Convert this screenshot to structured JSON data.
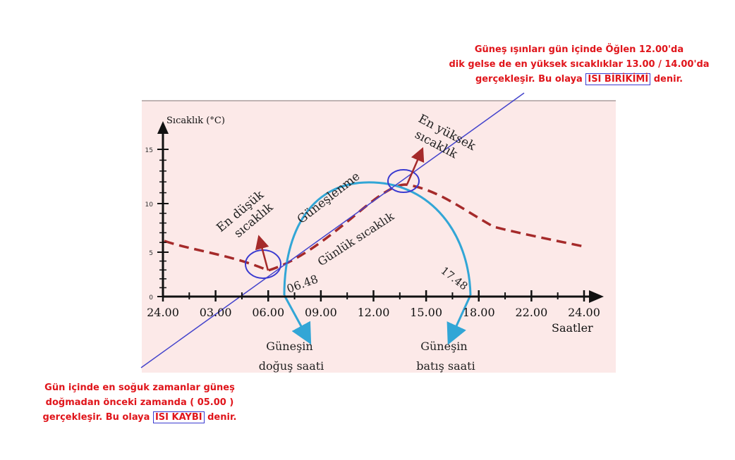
{
  "colors": {
    "background": "#ffffff",
    "panel": "#fce9e8",
    "panel_border": "#bfb3b3",
    "axis": "#111111",
    "temperature_curve": "#a52a2a",
    "sun_arc": "#32a6d6",
    "guide_line": "#4444cc",
    "circle": "#3a3ad0",
    "arrow": "#a52a2a",
    "note_text": "#e0151b"
  },
  "chart": {
    "y_axis_label": "Sıcaklık (°C)",
    "y_ticks": [
      "15",
      "10",
      "5",
      "0"
    ],
    "x_ticks": [
      "24.00",
      "03.00",
      "06.00",
      "09.00",
      "12.00",
      "15.00",
      "18.00",
      "22.00",
      "24.00"
    ],
    "x_axis_label": "Saatler",
    "min_label": [
      "En düşük",
      "sıcaklık"
    ],
    "max_label": [
      "En yüksek",
      "sıcaklık"
    ],
    "sun_arc_label": "Güneşlenme",
    "curve_label": "Günlük sıcaklık",
    "sunrise_time": "06.48",
    "sunset_time": "17.48",
    "sunrise_label": [
      "Güneşin",
      "doğuş saati"
    ],
    "sunset_label": [
      "Güneşin",
      "batış saati"
    ]
  },
  "notes": {
    "top": {
      "line1": "Güneş ışınları gün içinde Öğlen 12.00'da",
      "line2": "dik gelse de en yüksek sıcaklıklar 13.00  / 14.00'da",
      "line3_prefix": "gerçekleşir. Bu olaya ",
      "line3_term": "ISI BİRİKİMİ",
      "line3_suffix": " denir."
    },
    "bottom": {
      "line1": "Gün içinde en soğuk zamanlar güneş",
      "line2": "doğmadan önceki zamanda ( 05.00 )",
      "line3_prefix": "gerçekleşir. Bu olaya ",
      "line3_term": "ISI KAYBI",
      "line3_suffix": " denir."
    }
  }
}
